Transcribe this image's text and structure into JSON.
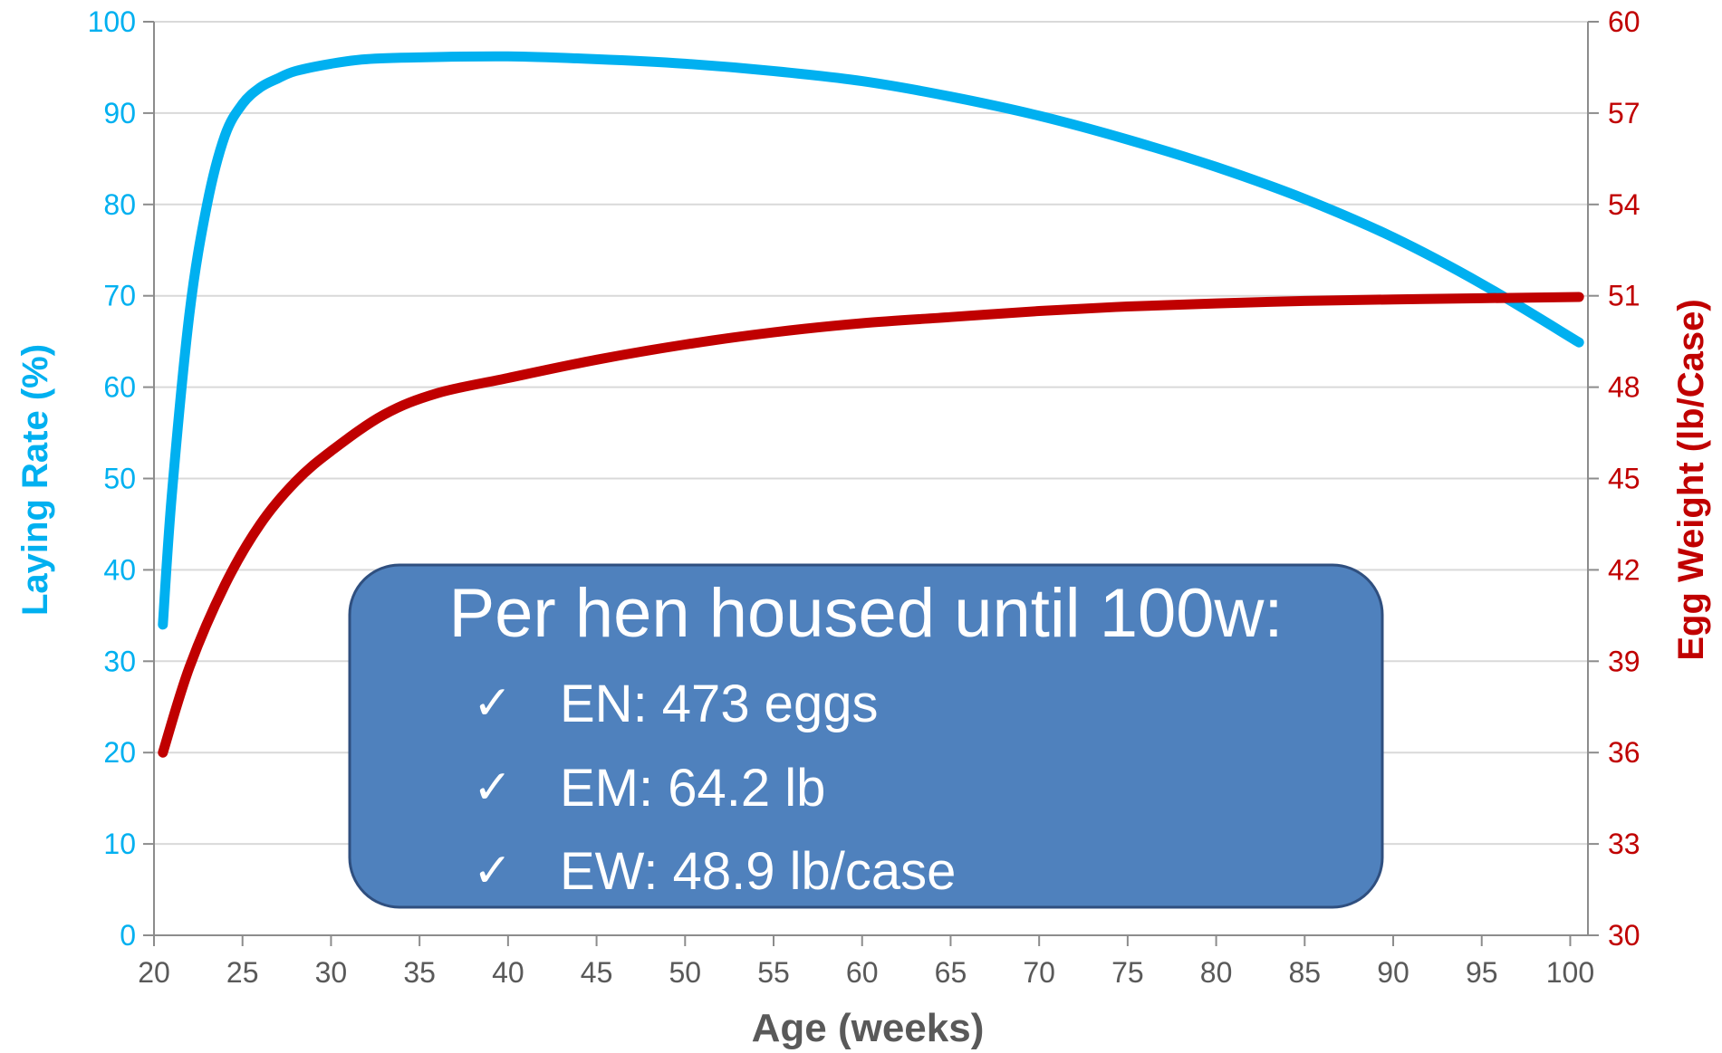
{
  "chart_data": {
    "type": "line",
    "xlabel": "Age (weeks)",
    "ylabel": "Laying Rate (%)",
    "y2label": "Egg Weight (lb/Case)",
    "xlim": [
      20,
      101
    ],
    "ylim": [
      0,
      100
    ],
    "y2lim": [
      30,
      60
    ],
    "x_ticks": [
      "20",
      "25",
      "30",
      "35",
      "40",
      "45",
      "50",
      "55",
      "60",
      "65",
      "70",
      "75",
      "80",
      "85",
      "90",
      "95",
      "100"
    ],
    "y_ticks": [
      "0",
      "10",
      "20",
      "30",
      "40",
      "50",
      "60",
      "70",
      "80",
      "90",
      "100"
    ],
    "y2_ticks": [
      "30",
      "33",
      "36",
      "39",
      "42",
      "45",
      "48",
      "51",
      "54",
      "57",
      "60"
    ],
    "grid": true,
    "colors": {
      "laying_rate": "#00b0f0",
      "egg_weight": "#c00000",
      "box_fill": "#4f81bd",
      "box_border": "#2f4f7f",
      "grid": "#d9d9d9",
      "axis": "#8c8c8c"
    },
    "series": [
      {
        "axis": "left",
        "color": "#00b0f0",
        "x": [
          20.5,
          21,
          22,
          23,
          24,
          25,
          26,
          27,
          28,
          30,
          32,
          35,
          40,
          45,
          50,
          55,
          60,
          65,
          70,
          75,
          80,
          85,
          90,
          95,
          100.5
        ],
        "values": [
          34,
          48,
          68,
          80,
          87.5,
          91,
          92.8,
          93.8,
          94.6,
          95.4,
          95.9,
          96.1,
          96.2,
          95.9,
          95.4,
          94.6,
          93.5,
          91.8,
          89.7,
          87.1,
          84.1,
          80.6,
          76.4,
          71.3,
          64.9
        ]
      },
      {
        "axis": "right",
        "color": "#c00000",
        "x": [
          20.5,
          22,
          24,
          26,
          28,
          30,
          33,
          36,
          40,
          45,
          50,
          55,
          60,
          65,
          70,
          75,
          80,
          85,
          90,
          95,
          100.5
        ],
        "values": [
          36,
          38.8,
          41.5,
          43.5,
          44.9,
          45.9,
          47.1,
          47.8,
          48.3,
          48.9,
          49.4,
          49.8,
          50.1,
          50.3,
          50.5,
          50.65,
          50.75,
          50.83,
          50.88,
          50.92,
          50.96
        ]
      }
    ]
  },
  "summary_box": {
    "title": "Per hen housed until 100w:",
    "check_glyph": "✓",
    "items": [
      {
        "label": "EN: 473 eggs"
      },
      {
        "label": "EM: 64.2 lb"
      },
      {
        "label": "EW: 48.9 lb/case"
      }
    ]
  }
}
